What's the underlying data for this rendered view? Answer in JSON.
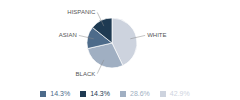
{
  "chart_data": {
    "type": "pie",
    "categories": [
      "WHITE",
      "BLACK",
      "ASIAN",
      "HISPANIC"
    ],
    "values": [
      42.9,
      28.6,
      14.3,
      14.3
    ],
    "value_labels": [
      "42.9%",
      "28.6%",
      "14.3%",
      "14.3%"
    ],
    "colors": [
      "#cdd3de",
      "#a0afc2",
      "#4d6b8a",
      "#1e3a52"
    ],
    "legend": "bottom"
  }
}
